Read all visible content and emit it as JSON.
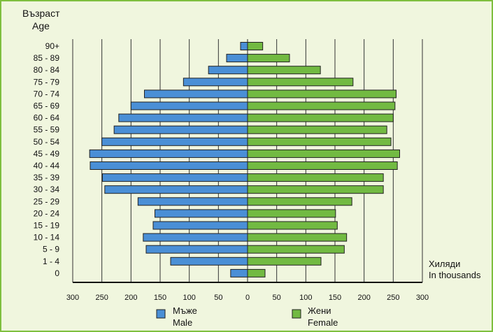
{
  "chart_data": {
    "type": "bar",
    "subtype": "population-pyramid",
    "y_title_bg": "Възраст",
    "y_title_en": "Age",
    "unit_bg": "Хиляди",
    "unit_en": "In thousands",
    "categories": [
      "90+",
      "85 - 89",
      "80 - 84",
      "75 - 79",
      "70 - 74",
      "65 - 69",
      "60 - 64",
      "55 - 59",
      "50 - 54",
      "45 - 49",
      "40 - 44",
      "35 - 39",
      "30 - 34",
      "25 - 29",
      "20 - 24",
      "15 - 19",
      "10 - 14",
      "5 -  9",
      "1 -  4",
      "0"
    ],
    "x_ticks": [
      "300",
      "250",
      "200",
      "150",
      "100",
      "50",
      "0",
      "50",
      "100",
      "150",
      "200",
      "250",
      "300"
    ],
    "xlim": [
      -300,
      300
    ],
    "grid": "vertical",
    "legend_position": "bottom",
    "series": [
      {
        "name": "Мъже",
        "name_en": "Male",
        "side": "left",
        "color": "#4a8fd6",
        "values": [
          12,
          36,
          67,
          110,
          177,
          200,
          221,
          229,
          250,
          271,
          270,
          249,
          245,
          188,
          159,
          162,
          179,
          174,
          132,
          29
        ]
      },
      {
        "name": "Жени",
        "name_en": "Female",
        "side": "right",
        "color": "#72ba42",
        "values": [
          26,
          72,
          125,
          181,
          255,
          253,
          250,
          239,
          246,
          261,
          257,
          233,
          233,
          179,
          151,
          154,
          170,
          166,
          126,
          30
        ]
      }
    ]
  }
}
